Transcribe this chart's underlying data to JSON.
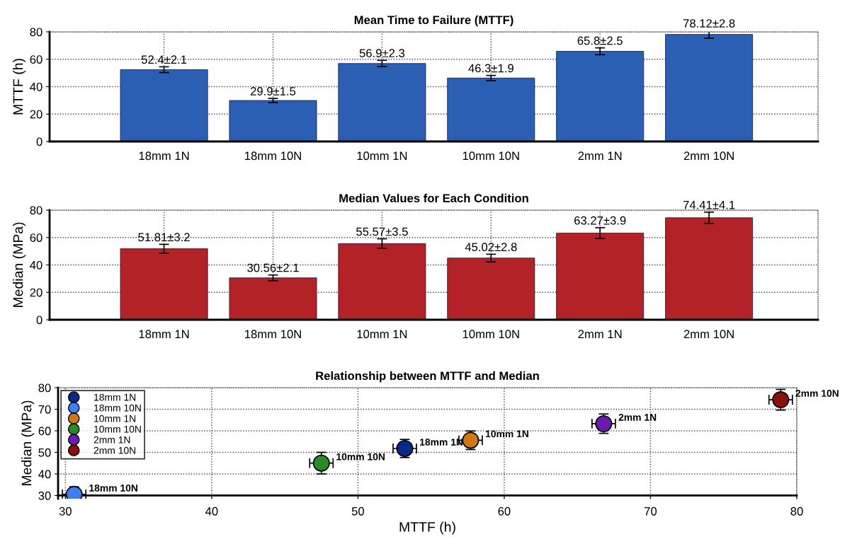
{
  "chart_data": [
    {
      "type": "bar",
      "title": "Mean Time to Failure (MTTF)",
      "ylabel": "MTTF (h)",
      "categories": [
        "18mm 1N",
        "18mm 10N",
        "10mm 1N",
        "10mm 10N",
        "2mm 1N",
        "2mm 10N"
      ],
      "values": [
        52.4,
        29.9,
        56.9,
        46.3,
        65.8,
        78.12
      ],
      "errors": [
        2.1,
        1.5,
        2.3,
        1.9,
        2.5,
        2.8
      ],
      "value_labels": [
        "52.4±2.1",
        "29.9±1.5",
        "56.9±2.3",
        "46.3±1.9",
        "65.8±2.5",
        "78.12±2.8"
      ],
      "color": "#2b5fb4",
      "ylim": [
        0,
        80
      ],
      "yticks": [
        0,
        20,
        40,
        60,
        80
      ],
      "grid": true
    },
    {
      "type": "bar",
      "title": "Median Values for Each Condition",
      "ylabel": "Median (MPa)",
      "categories": [
        "18mm 1N",
        "18mm 10N",
        "10mm 1N",
        "10mm 10N",
        "2mm 1N",
        "2mm 10N"
      ],
      "values": [
        51.81,
        30.56,
        55.57,
        45.02,
        63.27,
        74.41
      ],
      "errors": [
        3.2,
        2.1,
        3.5,
        2.8,
        3.9,
        4.1
      ],
      "value_labels": [
        "51.81±3.2",
        "30.56±2.1",
        "55.57±3.5",
        "45.02±2.8",
        "63.27±3.9",
        "74.41±4.1"
      ],
      "color": "#b22226",
      "ylim": [
        0,
        80
      ],
      "yticks": [
        0,
        20,
        40,
        60,
        80
      ],
      "grid": true
    },
    {
      "type": "scatter",
      "title": "Relationship between MTTF and Median",
      "xlabel": "MTTF (h)",
      "ylabel": "Median (MPa)",
      "xlim": [
        29.5,
        80
      ],
      "xticks": [
        30,
        40,
        50,
        60,
        70,
        80
      ],
      "ylim": [
        28.5,
        80
      ],
      "yticks": [
        30,
        40,
        50,
        60,
        70,
        80
      ],
      "grid": true,
      "legend": "top left",
      "marker": "circle",
      "series": [
        {
          "name": "18mm 1N",
          "color": "#0a2a8a",
          "x": [
            53.2
          ],
          "values": [
            51.8
          ],
          "errors": [
            4.2
          ],
          "xerrors": [
            0.8
          ]
        },
        {
          "name": "18mm 10N",
          "color": "#3d7ef5",
          "x": [
            30.6
          ],
          "values": [
            30.5
          ],
          "errors": [
            3.5
          ],
          "xerrors": [
            0.8
          ]
        },
        {
          "name": "10mm 1N",
          "color": "#d07818",
          "x": [
            57.7
          ],
          "values": [
            55.6
          ],
          "errors": [
            4.3
          ],
          "xerrors": [
            0.8
          ]
        },
        {
          "name": "10mm 10N",
          "color": "#2a8a26",
          "x": [
            47.5
          ],
          "values": [
            45.0
          ],
          "errors": [
            5.0
          ],
          "xerrors": [
            0.8
          ]
        },
        {
          "name": "2mm 1N",
          "color": "#6a1ab0",
          "x": [
            66.8
          ],
          "values": [
            63.3
          ],
          "errors": [
            4.5
          ],
          "xerrors": [
            0.8
          ]
        },
        {
          "name": "2mm 10N",
          "color": "#8a1010",
          "x": [
            78.9
          ],
          "values": [
            74.4
          ],
          "errors": [
            4.8
          ],
          "xerrors": [
            0.8
          ]
        }
      ]
    }
  ]
}
